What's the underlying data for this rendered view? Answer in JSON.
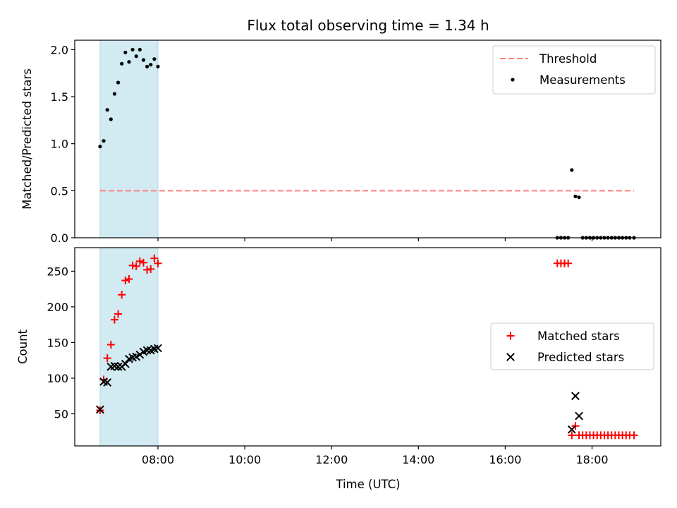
{
  "chart_data": [
    {
      "type": "scatter",
      "title": "Flux total observing time = 1.34 h",
      "ylabel": "Matched/Predicted stars",
      "ylim": [
        0,
        2.1
      ],
      "yticks": [
        "0.0",
        "0.5",
        "1.0",
        "1.5",
        "2.0"
      ],
      "shaded_interval": [
        "06:40",
        "08:00"
      ],
      "shade_color": "#add8e6",
      "legend_position": "top-right",
      "threshold": {
        "name": "Threshold",
        "value": 0.5,
        "x_range": [
          "06:40",
          "18:58"
        ],
        "color": "#ff7f7f"
      },
      "series": [
        {
          "name": "Measurements",
          "color": "#000000",
          "marker": "dot",
          "points": [
            [
              "06:40",
              0.97
            ],
            [
              "06:45",
              1.03
            ],
            [
              "06:50",
              1.36
            ],
            [
              "06:55",
              1.26
            ],
            [
              "07:00",
              1.53
            ],
            [
              "07:05",
              1.65
            ],
            [
              "07:10",
              1.85
            ],
            [
              "07:15",
              1.97
            ],
            [
              "07:20",
              1.87
            ],
            [
              "07:25",
              2.0
            ],
            [
              "07:30",
              1.93
            ],
            [
              "07:35",
              2.0
            ],
            [
              "07:40",
              1.89
            ],
            [
              "07:45",
              1.82
            ],
            [
              "07:50",
              1.84
            ],
            [
              "07:55",
              1.9
            ],
            [
              "08:00",
              1.82
            ],
            [
              "17:12",
              0.0
            ],
            [
              "17:17",
              0.0
            ],
            [
              "17:22",
              0.0
            ],
            [
              "17:27",
              0.0
            ],
            [
              "17:32",
              0.72
            ],
            [
              "17:37",
              0.44
            ],
            [
              "17:42",
              0.43
            ],
            [
              "17:47",
              0.0
            ],
            [
              "17:52",
              0.0
            ],
            [
              "17:57",
              0.0
            ],
            [
              "18:02",
              0.0
            ],
            [
              "18:07",
              0.0
            ],
            [
              "18:12",
              0.0
            ],
            [
              "18:17",
              0.0
            ],
            [
              "18:22",
              0.0
            ],
            [
              "18:27",
              0.0
            ],
            [
              "18:32",
              0.0
            ],
            [
              "18:37",
              0.0
            ],
            [
              "18:42",
              0.0
            ],
            [
              "18:47",
              0.0
            ],
            [
              "18:52",
              0.0
            ],
            [
              "18:58",
              0.0
            ]
          ]
        }
      ]
    },
    {
      "type": "scatter",
      "ylabel": "Count",
      "xlabel": "Time (UTC)",
      "ylim": [
        5,
        283
      ],
      "yticks": [
        "50",
        "100",
        "150",
        "200",
        "250"
      ],
      "xlim": [
        "06:05",
        "19:35"
      ],
      "xticks": [
        "08:00",
        "10:00",
        "12:00",
        "14:00",
        "16:00",
        "18:00"
      ],
      "shaded_interval": [
        "06:40",
        "08:00"
      ],
      "legend_position": "center-right",
      "series": [
        {
          "name": "Matched stars",
          "color": "#ff0000",
          "marker": "plus",
          "points": [
            [
              "06:40",
              55
            ],
            [
              "06:45",
              98
            ],
            [
              "06:50",
              128
            ],
            [
              "06:55",
              147
            ],
            [
              "07:00",
              182
            ],
            [
              "07:05",
              190
            ],
            [
              "07:10",
              217
            ],
            [
              "07:15",
              237
            ],
            [
              "07:20",
              239
            ],
            [
              "07:25",
              258
            ],
            [
              "07:30",
              257
            ],
            [
              "07:35",
              264
            ],
            [
              "07:40",
              262
            ],
            [
              "07:45",
              252
            ],
            [
              "07:50",
              253
            ],
            [
              "07:55",
              268
            ],
            [
              "08:00",
              261
            ],
            [
              "17:12",
              261
            ],
            [
              "17:17",
              261
            ],
            [
              "17:22",
              261
            ],
            [
              "17:27",
              261
            ],
            [
              "17:32",
              20
            ],
            [
              "17:37",
              33
            ],
            [
              "17:42",
              20
            ],
            [
              "17:47",
              20
            ],
            [
              "17:52",
              20
            ],
            [
              "17:57",
              20
            ],
            [
              "18:02",
              20
            ],
            [
              "18:07",
              20
            ],
            [
              "18:12",
              20
            ],
            [
              "18:17",
              20
            ],
            [
              "18:22",
              20
            ],
            [
              "18:27",
              20
            ],
            [
              "18:32",
              20
            ],
            [
              "18:37",
              20
            ],
            [
              "18:42",
              20
            ],
            [
              "18:47",
              20
            ],
            [
              "18:52",
              20
            ],
            [
              "18:58",
              20
            ]
          ]
        },
        {
          "name": "Predicted stars",
          "color": "#000000",
          "marker": "cross",
          "points": [
            [
              "06:40",
              56
            ],
            [
              "06:45",
              95
            ],
            [
              "06:50",
              94
            ],
            [
              "06:55",
              116
            ],
            [
              "07:00",
              117
            ],
            [
              "07:05",
              116
            ],
            [
              "07:10",
              116
            ],
            [
              "07:15",
              120
            ],
            [
              "07:20",
              127
            ],
            [
              "07:25",
              129
            ],
            [
              "07:30",
              130
            ],
            [
              "07:35",
              133
            ],
            [
              "07:40",
              137
            ],
            [
              "07:45",
              139
            ],
            [
              "07:50",
              139
            ],
            [
              "07:55",
              141
            ],
            [
              "08:00",
              142
            ],
            [
              "17:32",
              28
            ],
            [
              "17:37",
              75
            ],
            [
              "17:42",
              47
            ]
          ]
        }
      ]
    }
  ]
}
